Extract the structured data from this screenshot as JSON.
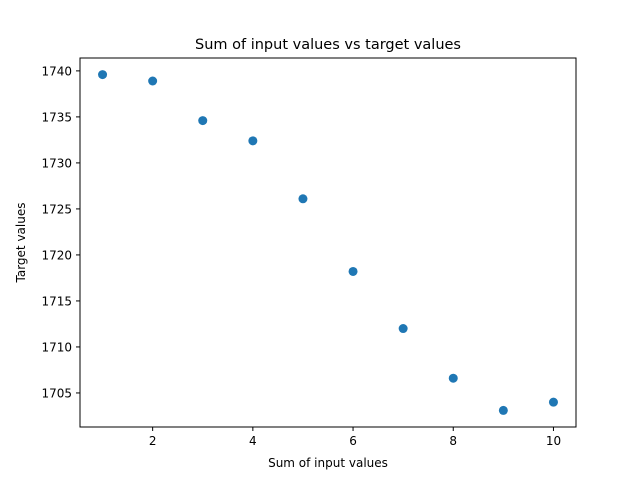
{
  "chart_data": {
    "type": "scatter",
    "title": "Sum of input values vs target values",
    "xlabel": "Sum of input values",
    "ylabel": "Target values",
    "x": [
      1,
      2,
      3,
      4,
      5,
      6,
      7,
      8,
      9,
      10
    ],
    "y": [
      1739.6,
      1738.9,
      1734.6,
      1732.4,
      1726.1,
      1718.2,
      1712.0,
      1706.6,
      1703.1,
      1704.0
    ],
    "xlim": [
      0.55,
      10.45
    ],
    "ylim": [
      1701.3,
      1741.4
    ],
    "xticks": [
      2,
      4,
      6,
      8,
      10
    ],
    "yticks": [
      1705,
      1710,
      1715,
      1720,
      1725,
      1730,
      1735,
      1740
    ],
    "grid": false,
    "marker_color": "#1f77b4"
  }
}
